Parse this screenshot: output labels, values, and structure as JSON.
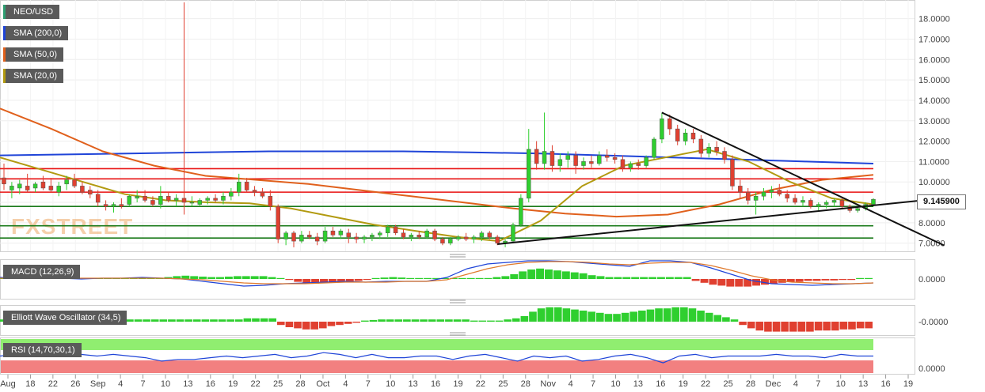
{
  "legend": {
    "pair": {
      "label": "NEO/USD",
      "color": "#2e9e72"
    },
    "sma200": {
      "label": "SMA (200,0)",
      "color": "#1f44d8"
    },
    "sma50": {
      "label": "SMA (50,0)",
      "color": "#e0601c"
    },
    "sma20": {
      "label": "SMA (20,0)",
      "color": "#b29a10"
    }
  },
  "watermark": "FXSTREET",
  "current_price": "9.145900",
  "indicators": {
    "macd": {
      "label": "MACD (12,26,9)",
      "value_label": "0.0000"
    },
    "ewo": {
      "label": "Elliott Wave Oscillator (34,5)",
      "value_label": "-0.0000"
    },
    "rsi": {
      "label": "RSI (14,70,30,1)",
      "value_label": "0.0000"
    }
  },
  "chart_data": {
    "type": "candlestick",
    "price_axis": {
      "ticks": [
        "18.0000",
        "17.0000",
        "16.0000",
        "15.0000",
        "14.0000",
        "13.0000",
        "12.0000",
        "11.0000",
        "10.0000",
        "9.0000",
        "8.0000",
        "7.0000"
      ],
      "range": [
        6.6,
        18.8
      ]
    },
    "x_ticks": [
      "Aug",
      "18",
      "22",
      "26",
      "Sep",
      "4",
      "7",
      "10",
      "13",
      "16",
      "19",
      "22",
      "25",
      "28",
      "Oct",
      "4",
      "7",
      "10",
      "13",
      "16",
      "19",
      "22",
      "25",
      "28",
      "Nov",
      "4",
      "7",
      "10",
      "13",
      "16",
      "19",
      "22",
      "25",
      "28",
      "Dec",
      "4",
      "7",
      "10",
      "13",
      "16",
      "19"
    ],
    "colors": {
      "up": "#2fcf2f",
      "down": "#e04030",
      "resistance": "#e81010",
      "support": "#1a7a1a",
      "trend": "#111111"
    },
    "horizontal_levels": {
      "resistance": [
        10.65,
        10.15,
        9.5
      ],
      "support": [
        8.8,
        7.85,
        7.25
      ]
    },
    "candles": [
      {
        "o": 10.2,
        "h": 10.9,
        "l": 9.6,
        "c": 9.9
      },
      {
        "o": 9.6,
        "h": 10.0,
        "l": 9.2,
        "c": 9.8
      },
      {
        "o": 9.7,
        "h": 10.1,
        "l": 9.4,
        "c": 9.9
      },
      {
        "o": 9.8,
        "h": 10.4,
        "l": 9.5,
        "c": 9.6
      },
      {
        "o": 9.7,
        "h": 10.0,
        "l": 9.5,
        "c": 9.9
      },
      {
        "o": 10.0,
        "h": 10.3,
        "l": 9.6,
        "c": 9.7
      },
      {
        "o": 9.8,
        "h": 10.2,
        "l": 9.5,
        "c": 9.6
      },
      {
        "o": 9.5,
        "h": 10.0,
        "l": 9.3,
        "c": 9.8
      },
      {
        "o": 9.9,
        "h": 10.3,
        "l": 9.6,
        "c": 10.1
      },
      {
        "o": 10.1,
        "h": 10.4,
        "l": 9.7,
        "c": 9.8
      },
      {
        "o": 9.8,
        "h": 10.0,
        "l": 9.4,
        "c": 9.5
      },
      {
        "o": 9.6,
        "h": 9.8,
        "l": 9.2,
        "c": 9.4
      },
      {
        "o": 9.4,
        "h": 9.6,
        "l": 8.8,
        "c": 9.0
      },
      {
        "o": 8.9,
        "h": 9.1,
        "l": 8.6,
        "c": 8.8
      },
      {
        "o": 8.8,
        "h": 9.0,
        "l": 8.5,
        "c": 8.9
      },
      {
        "o": 8.9,
        "h": 9.2,
        "l": 8.7,
        "c": 8.8
      },
      {
        "o": 8.9,
        "h": 9.4,
        "l": 8.8,
        "c": 9.3
      },
      {
        "o": 9.2,
        "h": 9.6,
        "l": 9.0,
        "c": 9.3
      },
      {
        "o": 9.3,
        "h": 9.6,
        "l": 9.0,
        "c": 9.1
      },
      {
        "o": 9.1,
        "h": 9.3,
        "l": 8.8,
        "c": 8.9
      },
      {
        "o": 8.9,
        "h": 9.8,
        "l": 8.7,
        "c": 9.3
      },
      {
        "o": 9.3,
        "h": 9.5,
        "l": 9.0,
        "c": 9.1
      },
      {
        "o": 9.1,
        "h": 9.4,
        "l": 8.8,
        "c": 9.2
      },
      {
        "o": 9.2,
        "h": 18.8,
        "l": 8.4,
        "c": 9.0
      },
      {
        "o": 9.0,
        "h": 9.3,
        "l": 8.8,
        "c": 9.0
      },
      {
        "o": 8.9,
        "h": 9.2,
        "l": 8.8,
        "c": 9.1
      },
      {
        "o": 9.1,
        "h": 9.3,
        "l": 8.9,
        "c": 9.2
      },
      {
        "o": 9.2,
        "h": 9.4,
        "l": 9.0,
        "c": 9.1
      },
      {
        "o": 9.1,
        "h": 9.5,
        "l": 8.9,
        "c": 9.3
      },
      {
        "o": 9.3,
        "h": 9.7,
        "l": 9.1,
        "c": 9.5
      },
      {
        "o": 9.5,
        "h": 10.4,
        "l": 9.3,
        "c": 10.0
      },
      {
        "o": 10.0,
        "h": 10.2,
        "l": 9.5,
        "c": 9.6
      },
      {
        "o": 9.6,
        "h": 9.8,
        "l": 9.3,
        "c": 9.5
      },
      {
        "o": 9.5,
        "h": 9.7,
        "l": 9.2,
        "c": 9.3
      },
      {
        "o": 9.3,
        "h": 9.6,
        "l": 8.6,
        "c": 8.8
      },
      {
        "o": 8.8,
        "h": 8.9,
        "l": 7.0,
        "c": 7.2
      },
      {
        "o": 7.2,
        "h": 7.6,
        "l": 6.9,
        "c": 7.5
      },
      {
        "o": 7.5,
        "h": 7.6,
        "l": 6.8,
        "c": 7.1
      },
      {
        "o": 7.1,
        "h": 7.6,
        "l": 7.0,
        "c": 7.4
      },
      {
        "o": 7.4,
        "h": 7.6,
        "l": 7.2,
        "c": 7.3
      },
      {
        "o": 7.3,
        "h": 7.5,
        "l": 6.9,
        "c": 7.1
      },
      {
        "o": 7.1,
        "h": 7.8,
        "l": 7.0,
        "c": 7.6
      },
      {
        "o": 7.6,
        "h": 7.8,
        "l": 7.3,
        "c": 7.4
      },
      {
        "o": 7.4,
        "h": 7.7,
        "l": 7.2,
        "c": 7.6
      },
      {
        "o": 7.5,
        "h": 7.7,
        "l": 7.0,
        "c": 7.3
      },
      {
        "o": 7.3,
        "h": 7.5,
        "l": 7.0,
        "c": 7.2
      },
      {
        "o": 7.2,
        "h": 7.4,
        "l": 7.0,
        "c": 7.3
      },
      {
        "o": 7.3,
        "h": 7.5,
        "l": 7.1,
        "c": 7.4
      },
      {
        "o": 7.4,
        "h": 7.6,
        "l": 7.2,
        "c": 7.5
      },
      {
        "o": 7.5,
        "h": 7.9,
        "l": 7.3,
        "c": 7.8
      },
      {
        "o": 7.8,
        "h": 7.9,
        "l": 7.4,
        "c": 7.5
      },
      {
        "o": 7.5,
        "h": 7.7,
        "l": 7.2,
        "c": 7.3
      },
      {
        "o": 7.3,
        "h": 7.5,
        "l": 7.1,
        "c": 7.4
      },
      {
        "o": 7.4,
        "h": 7.6,
        "l": 7.2,
        "c": 7.3
      },
      {
        "o": 7.3,
        "h": 7.7,
        "l": 7.2,
        "c": 7.6
      },
      {
        "o": 7.6,
        "h": 7.7,
        "l": 7.1,
        "c": 7.2
      },
      {
        "o": 7.2,
        "h": 7.3,
        "l": 6.9,
        "c": 7.0
      },
      {
        "o": 7.0,
        "h": 7.3,
        "l": 6.9,
        "c": 7.2
      },
      {
        "o": 7.2,
        "h": 7.4,
        "l": 7.1,
        "c": 7.3
      },
      {
        "o": 7.3,
        "h": 7.5,
        "l": 7.1,
        "c": 7.2
      },
      {
        "o": 7.2,
        "h": 7.4,
        "l": 7.0,
        "c": 7.3
      },
      {
        "o": 7.3,
        "h": 7.6,
        "l": 7.1,
        "c": 7.5
      },
      {
        "o": 7.5,
        "h": 7.6,
        "l": 7.2,
        "c": 7.3
      },
      {
        "o": 7.3,
        "h": 7.4,
        "l": 6.9,
        "c": 7.0
      },
      {
        "o": 7.0,
        "h": 7.2,
        "l": 6.8,
        "c": 7.1
      },
      {
        "o": 7.1,
        "h": 8.0,
        "l": 7.0,
        "c": 7.9
      },
      {
        "o": 7.9,
        "h": 9.4,
        "l": 7.8,
        "c": 9.2
      },
      {
        "o": 9.2,
        "h": 12.6,
        "l": 9.0,
        "c": 11.6
      },
      {
        "o": 11.6,
        "h": 12.0,
        "l": 10.6,
        "c": 10.9
      },
      {
        "o": 10.9,
        "h": 13.4,
        "l": 10.6,
        "c": 11.5
      },
      {
        "o": 11.5,
        "h": 11.8,
        "l": 10.5,
        "c": 10.8
      },
      {
        "o": 10.8,
        "h": 11.4,
        "l": 10.5,
        "c": 11.1
      },
      {
        "o": 11.1,
        "h": 11.5,
        "l": 10.7,
        "c": 11.3
      },
      {
        "o": 11.3,
        "h": 11.5,
        "l": 10.4,
        "c": 10.8
      },
      {
        "o": 10.8,
        "h": 11.2,
        "l": 10.6,
        "c": 11.0
      },
      {
        "o": 11.0,
        "h": 11.3,
        "l": 10.7,
        "c": 10.9
      },
      {
        "o": 10.9,
        "h": 11.5,
        "l": 10.8,
        "c": 11.3
      },
      {
        "o": 11.3,
        "h": 11.6,
        "l": 11.0,
        "c": 11.2
      },
      {
        "o": 11.2,
        "h": 11.4,
        "l": 10.9,
        "c": 11.1
      },
      {
        "o": 11.1,
        "h": 11.3,
        "l": 10.5,
        "c": 10.7
      },
      {
        "o": 10.7,
        "h": 11.0,
        "l": 10.5,
        "c": 10.9
      },
      {
        "o": 10.9,
        "h": 11.1,
        "l": 10.6,
        "c": 10.8
      },
      {
        "o": 10.8,
        "h": 11.3,
        "l": 10.7,
        "c": 11.2
      },
      {
        "o": 11.2,
        "h": 12.2,
        "l": 11.1,
        "c": 12.1
      },
      {
        "o": 12.1,
        "h": 13.4,
        "l": 11.9,
        "c": 13.1
      },
      {
        "o": 13.1,
        "h": 13.3,
        "l": 12.3,
        "c": 12.6
      },
      {
        "o": 12.6,
        "h": 12.8,
        "l": 11.8,
        "c": 12.0
      },
      {
        "o": 12.0,
        "h": 12.6,
        "l": 11.8,
        "c": 12.4
      },
      {
        "o": 12.4,
        "h": 12.6,
        "l": 11.9,
        "c": 12.1
      },
      {
        "o": 12.1,
        "h": 12.3,
        "l": 11.2,
        "c": 11.4
      },
      {
        "o": 11.4,
        "h": 11.9,
        "l": 11.2,
        "c": 11.7
      },
      {
        "o": 11.7,
        "h": 12.0,
        "l": 11.3,
        "c": 11.5
      },
      {
        "o": 11.5,
        "h": 11.7,
        "l": 10.9,
        "c": 11.1
      },
      {
        "o": 11.1,
        "h": 11.3,
        "l": 9.6,
        "c": 9.8
      },
      {
        "o": 9.8,
        "h": 10.1,
        "l": 9.2,
        "c": 9.5
      },
      {
        "o": 9.5,
        "h": 9.7,
        "l": 8.9,
        "c": 9.1
      },
      {
        "o": 9.1,
        "h": 9.5,
        "l": 8.4,
        "c": 9.3
      },
      {
        "o": 9.3,
        "h": 9.7,
        "l": 9.1,
        "c": 9.5
      },
      {
        "o": 9.5,
        "h": 9.8,
        "l": 9.2,
        "c": 9.6
      },
      {
        "o": 9.6,
        "h": 9.9,
        "l": 9.3,
        "c": 9.4
      },
      {
        "o": 9.4,
        "h": 9.6,
        "l": 9.0,
        "c": 9.2
      },
      {
        "o": 9.2,
        "h": 9.4,
        "l": 8.9,
        "c": 9.0
      },
      {
        "o": 9.0,
        "h": 9.3,
        "l": 8.8,
        "c": 9.1
      },
      {
        "o": 9.1,
        "h": 9.2,
        "l": 8.7,
        "c": 8.8
      },
      {
        "o": 8.8,
        "h": 9.0,
        "l": 8.6,
        "c": 8.9
      },
      {
        "o": 8.9,
        "h": 9.1,
        "l": 8.7,
        "c": 9.0
      },
      {
        "o": 9.0,
        "h": 9.2,
        "l": 8.8,
        "c": 9.1
      },
      {
        "o": 9.1,
        "h": 9.2,
        "l": 8.7,
        "c": 8.8
      },
      {
        "o": 8.8,
        "h": 8.9,
        "l": 8.5,
        "c": 8.6
      },
      {
        "o": 8.6,
        "h": 8.8,
        "l": 8.5,
        "c": 8.7
      },
      {
        "o": 8.7,
        "h": 9.0,
        "l": 8.6,
        "c": 8.9
      },
      {
        "o": 8.9,
        "h": 9.2,
        "l": 8.8,
        "c": 9.15
      }
    ],
    "sma200": [
      11.3,
      11.35,
      11.4,
      11.45,
      11.5,
      11.5,
      11.5,
      11.45,
      11.4,
      11.3,
      11.2,
      11.1,
      11.0,
      10.9
    ],
    "sma50": [
      13.6,
      12.6,
      11.5,
      10.8,
      10.3,
      10.1,
      9.9,
      9.6,
      9.3,
      9.0,
      8.7,
      8.45,
      8.3,
      8.4,
      8.9,
      9.6,
      10.1,
      10.35
    ],
    "sma20": [
      11.2,
      10.6,
      10.0,
      9.4,
      9.1,
      9.0,
      8.95,
      8.7,
      8.3,
      7.9,
      7.6,
      7.3,
      7.1,
      8.1,
      9.8,
      10.8,
      11.2,
      11.6,
      11.0,
      10.0,
      9.2,
      8.9
    ],
    "trendlines": [
      {
        "from": {
          "candle": 63,
          "price": 6.95
        },
        "to": {
          "candle": 115,
          "price": 8.9
        }
      },
      {
        "from": {
          "candle": 84,
          "price": 13.4
        },
        "to": {
          "candle": 115,
          "price": 7.35
        }
      }
    ],
    "macd_histogram": [
      0.1,
      0.1,
      0.1,
      0.1,
      0.1,
      0.1,
      0.1,
      0.1,
      0.1,
      0.1,
      0.1,
      0.1,
      0.1,
      0.1,
      0.1,
      0.1,
      0.1,
      0.1,
      0.1,
      0.2,
      0.3,
      0.35,
      0.3,
      0.25,
      0.2,
      0.2,
      0.25,
      0.3,
      0.3,
      0.3,
      0.3,
      0.2,
      0.1,
      -0.1,
      -0.3,
      -0.45,
      -0.5,
      -0.45,
      -0.4,
      -0.35,
      -0.3,
      -0.2,
      -0.1,
      0.1,
      0.15,
      0.2,
      0.15,
      0.1,
      0.1,
      0.1,
      0.1,
      0.1,
      0.1,
      0.1,
      0.1,
      0.1,
      0.1,
      0.2,
      0.3,
      0.5,
      0.8,
      1.0,
      1.1,
      1.0,
      0.9,
      0.8,
      0.7,
      0.6,
      0.4,
      0.3,
      0.2,
      0.2,
      0.2,
      0.2,
      0.2,
      0.2,
      0.2,
      0.2,
      0.2,
      0.2,
      -0.2,
      -0.4,
      -0.6,
      -0.7,
      -0.8,
      -0.8,
      -0.8,
      -0.7,
      -0.6,
      -0.5,
      -0.4,
      -0.3,
      -0.3,
      -0.2,
      -0.2,
      -0.15,
      -0.15,
      -0.1,
      -0.1,
      0.1,
      0.1
    ],
    "macd_line": [
      0.2,
      0.1,
      0.1,
      0.1,
      0.0,
      0.1,
      0.1,
      0.2,
      0.1,
      0.0,
      -0.3,
      -0.6,
      -0.9,
      -0.8,
      -0.6,
      -0.5,
      -0.4,
      -0.3,
      -0.4,
      -0.3,
      -0.3,
      -0.3,
      0.2,
      1.3,
      1.9,
      2.1,
      2.3,
      2.3,
      2.2,
      2.0,
      1.8,
      1.6,
      2.3,
      2.3,
      2.1,
      1.4,
      0.6,
      -0.2,
      -0.6,
      -0.7,
      -0.8,
      -0.7,
      -0.6,
      -0.5
    ],
    "macd_signal": [
      0.1,
      0.1,
      0.1,
      0.1,
      0.1,
      0.1,
      0.1,
      0.1,
      0.1,
      0.0,
      -0.1,
      -0.3,
      -0.5,
      -0.6,
      -0.6,
      -0.6,
      -0.5,
      -0.4,
      -0.4,
      -0.4,
      -0.3,
      -0.3,
      -0.1,
      0.6,
      1.3,
      1.8,
      2.1,
      2.2,
      2.2,
      2.1,
      1.9,
      1.8,
      2.0,
      2.1,
      2.1,
      1.7,
      1.1,
      0.4,
      -0.1,
      -0.4,
      -0.5,
      -0.6,
      -0.6,
      -0.5
    ],
    "ewo_histogram": [
      0.2,
      0.2,
      0.2,
      0.2,
      0.2,
      0.2,
      0.2,
      0.2,
      0.2,
      0.2,
      0.2,
      0.2,
      0.2,
      0.2,
      0.2,
      0.2,
      0.2,
      0.2,
      0.2,
      0.2,
      0.2,
      0.2,
      0.2,
      0.2,
      0.2,
      0.2,
      0.2,
      0.2,
      0.2,
      0.3,
      0.3,
      0.3,
      0.3,
      -0.3,
      -0.5,
      -0.6,
      -0.7,
      -0.7,
      -0.6,
      -0.4,
      -0.3,
      -0.2,
      -0.1,
      0.1,
      0.15,
      0.2,
      0.2,
      0.2,
      0.2,
      0.2,
      0.2,
      0.2,
      0.2,
      0.2,
      0.2,
      0.2,
      0.1,
      0.1,
      0.1,
      0.1,
      0.2,
      0.3,
      0.5,
      0.9,
      1.2,
      1.3,
      1.3,
      1.2,
      1.1,
      1.0,
      0.9,
      0.8,
      0.7,
      0.7,
      0.8,
      0.9,
      1.0,
      1.1,
      1.2,
      1.2,
      1.3,
      1.3,
      1.2,
      1.0,
      0.8,
      0.6,
      0.4,
      0.2,
      -0.3,
      -0.6,
      -0.8,
      -0.9,
      -0.9,
      -0.9,
      -0.9,
      -0.9,
      -0.9,
      -0.8,
      -0.8,
      -0.8,
      -0.7,
      -0.7,
      -0.6,
      -0.6
    ],
    "rsi_line": [
      0.5,
      0.55,
      0.6,
      0.6,
      0.55,
      0.55,
      0.5,
      0.55,
      0.5,
      0.45,
      0.35,
      0.4,
      0.4,
      0.45,
      0.5,
      0.45,
      0.5,
      0.55,
      0.45,
      0.5,
      0.6,
      0.55,
      0.45,
      0.55,
      0.45,
      0.45,
      0.5,
      0.5,
      0.4,
      0.5,
      0.55,
      0.45,
      0.35,
      0.5,
      0.45,
      0.5,
      0.35,
      0.4,
      0.5,
      0.55,
      0.45,
      0.3,
      0.5,
      0.55,
      0.45,
      0.5,
      0.5,
      0.5,
      0.55,
      0.5,
      0.5,
      0.45,
      0.55,
      0.5,
      0.5
    ]
  }
}
